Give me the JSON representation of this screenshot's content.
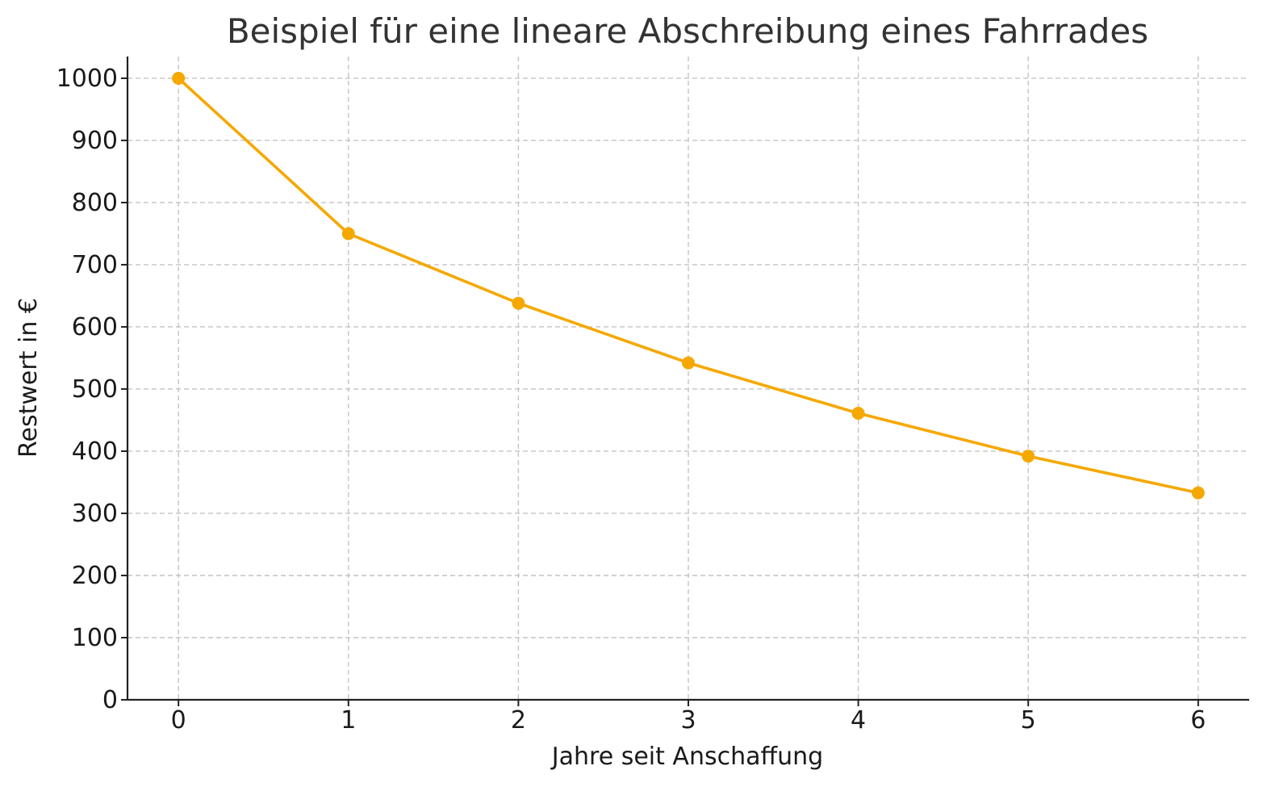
{
  "chart_data": {
    "type": "line",
    "title": "Beispiel für eine lineare Abschreibung eines Fahrrades",
    "xlabel": "Jahre seit Anschaffung",
    "ylabel": "Restwert in €",
    "x": [
      0,
      1,
      2,
      3,
      4,
      5,
      6
    ],
    "x_ticks": [
      "0",
      "1",
      "2",
      "3",
      "4",
      "5",
      "6"
    ],
    "y_ticks": [
      "0",
      "100",
      "200",
      "300",
      "400",
      "500",
      "600",
      "700",
      "800",
      "900",
      "1000"
    ],
    "xlim": [
      -0.3,
      6.3
    ],
    "ylim": [
      0,
      1035
    ],
    "grid": true,
    "series": [
      {
        "values": [
          1000,
          750,
          638,
          542,
          461,
          392,
          333
        ],
        "color": "#f5a800",
        "marker": "circle"
      }
    ]
  }
}
